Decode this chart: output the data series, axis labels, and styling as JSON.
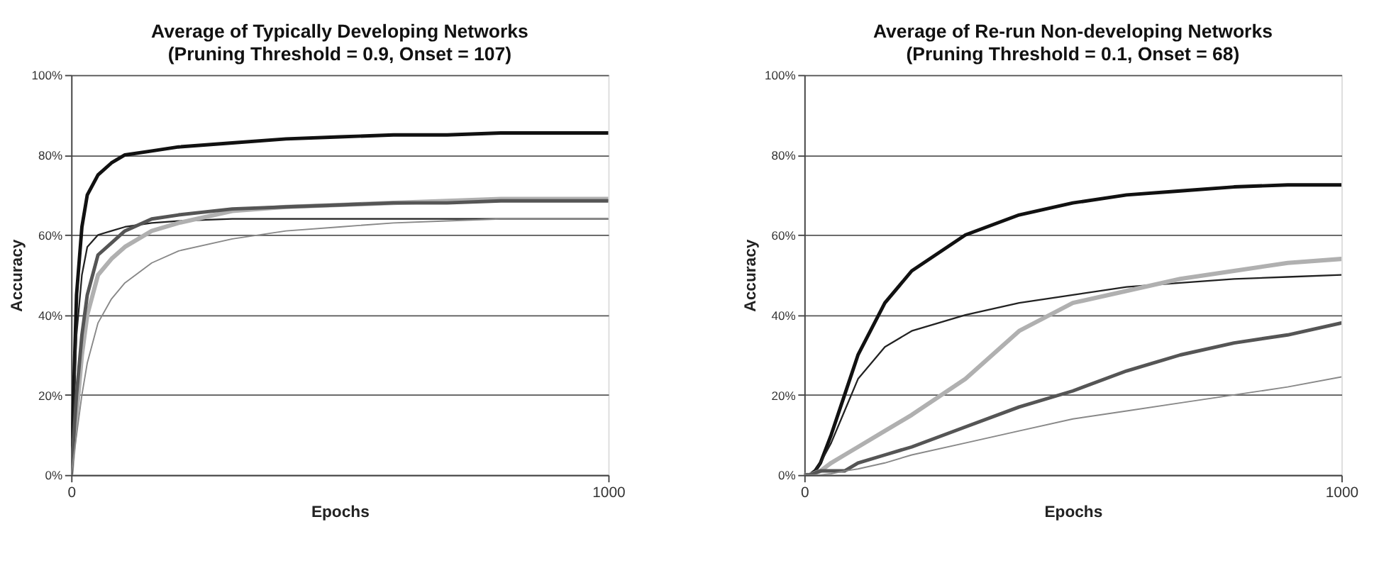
{
  "chart_data": [
    {
      "type": "line",
      "title": "Average of Typically Developing Networks",
      "subtitle": "(Pruning Threshold = 0.9, Onset = 107)",
      "xlabel": "Epochs",
      "ylabel": "Accuracy",
      "x": [
        0,
        10,
        20,
        30,
        50,
        75,
        100,
        150,
        200,
        300,
        400,
        500,
        600,
        700,
        800,
        900,
        1000
      ],
      "xlim": [
        0,
        1000
      ],
      "xticks": [
        0,
        1000
      ],
      "ylim": [
        0,
        1
      ],
      "yticks": [
        {
          "value": 0,
          "label": "0%"
        },
        {
          "value": 0.2,
          "label": "20%"
        },
        {
          "value": 0.4,
          "label": "40%"
        },
        {
          "value": 0.6,
          "label": "60%"
        },
        {
          "value": 0.8,
          "label": "80%"
        },
        {
          "value": 1,
          "label": "100%"
        }
      ],
      "grid": "y",
      "marker": "none",
      "line_style": "solid",
      "series": [
        {
          "color": "#111111",
          "values": [
            0,
            0.45,
            0.62,
            0.7,
            0.75,
            0.78,
            0.8,
            0.81,
            0.82,
            0.83,
            0.84,
            0.845,
            0.85,
            0.85,
            0.855,
            0.855,
            0.855
          ]
        },
        {
          "color": "#222222",
          "values": [
            0,
            0.35,
            0.5,
            0.57,
            0.6,
            0.61,
            0.62,
            0.63,
            0.635,
            0.64,
            0.64,
            0.64,
            0.64,
            0.64,
            0.64,
            0.64,
            0.64
          ]
        },
        {
          "color": "#b0b0b0",
          "values": [
            0,
            0.15,
            0.3,
            0.4,
            0.5,
            0.54,
            0.57,
            0.61,
            0.63,
            0.66,
            0.67,
            0.675,
            0.68,
            0.685,
            0.69,
            0.69,
            0.69
          ]
        },
        {
          "color": "#555555",
          "values": [
            0,
            0.2,
            0.35,
            0.45,
            0.55,
            0.58,
            0.61,
            0.64,
            0.65,
            0.665,
            0.67,
            0.675,
            0.68,
            0.68,
            0.685,
            0.685,
            0.685
          ]
        },
        {
          "color": "#888888",
          "values": [
            0,
            0.1,
            0.2,
            0.28,
            0.38,
            0.44,
            0.48,
            0.53,
            0.56,
            0.59,
            0.61,
            0.62,
            0.63,
            0.635,
            0.64,
            0.64,
            0.64
          ]
        }
      ]
    },
    {
      "type": "line",
      "title": "Average of Re-run Non-developing Networks",
      "subtitle": "(Pruning Threshold = 0.1, Onset = 68)",
      "xlabel": "Epochs",
      "ylabel": "Accuracy",
      "x": [
        0,
        10,
        20,
        30,
        50,
        75,
        100,
        150,
        200,
        300,
        400,
        500,
        600,
        700,
        800,
        900,
        1000
      ],
      "xlim": [
        0,
        1000
      ],
      "xticks": [
        0,
        1000
      ],
      "ylim": [
        0,
        1
      ],
      "yticks": [
        {
          "value": 0,
          "label": "0%"
        },
        {
          "value": 0.2,
          "label": "20%"
        },
        {
          "value": 0.4,
          "label": "40%"
        },
        {
          "value": 0.6,
          "label": "60%"
        },
        {
          "value": 0.8,
          "label": "80%"
        },
        {
          "value": 1,
          "label": "100%"
        }
      ],
      "grid": "y",
      "marker": "none",
      "line_style": "solid",
      "series": [
        {
          "color": "#111111",
          "values": [
            0,
            0,
            0.01,
            0.03,
            0.1,
            0.2,
            0.3,
            0.43,
            0.51,
            0.6,
            0.65,
            0.68,
            0.7,
            0.71,
            0.72,
            0.725,
            0.725
          ]
        },
        {
          "color": "#222222",
          "values": [
            0,
            0,
            0.01,
            0.03,
            0.08,
            0.16,
            0.24,
            0.32,
            0.36,
            0.4,
            0.43,
            0.45,
            0.47,
            0.48,
            0.49,
            0.495,
            0.5
          ]
        },
        {
          "color": "#b0b0b0",
          "values": [
            0,
            0,
            0.005,
            0.01,
            0.03,
            0.05,
            0.07,
            0.11,
            0.15,
            0.24,
            0.36,
            0.43,
            0.46,
            0.49,
            0.51,
            0.53,
            0.54
          ]
        },
        {
          "color": "#555555",
          "values": [
            0,
            0,
            0.005,
            0.01,
            0.01,
            0.01,
            0.03,
            0.05,
            0.07,
            0.12,
            0.17,
            0.21,
            0.26,
            0.3,
            0.33,
            0.35,
            0.38
          ]
        },
        {
          "color": "#888888",
          "values": [
            0,
            0,
            0,
            0,
            0.003,
            0.01,
            0.015,
            0.03,
            0.05,
            0.08,
            0.11,
            0.14,
            0.16,
            0.18,
            0.2,
            0.22,
            0.245
          ]
        }
      ]
    }
  ]
}
